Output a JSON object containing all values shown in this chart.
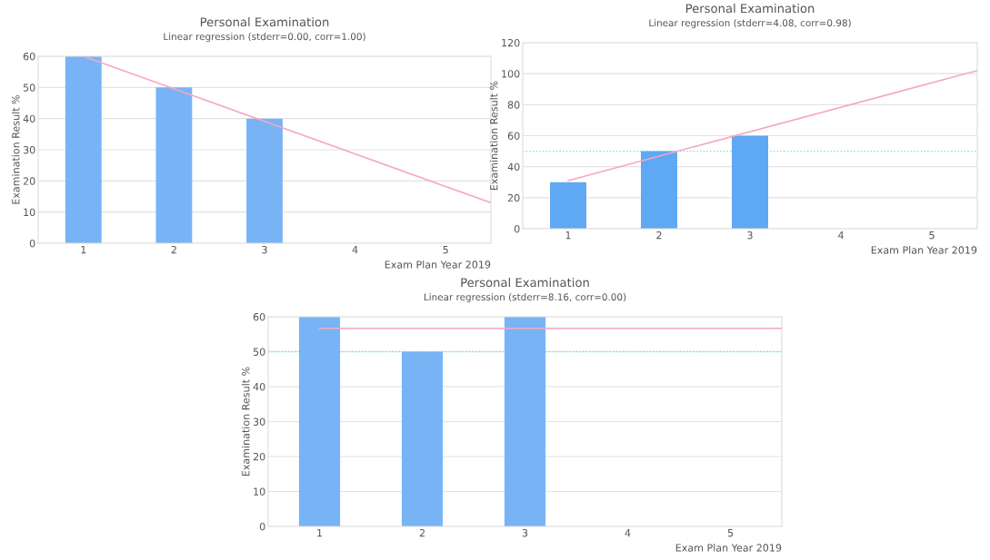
{
  "chart_data": [
    {
      "type": "bar",
      "title": "Personal Examination",
      "subtitle": "Linear regression (stderr=0.00, corr=1.00)",
      "xlabel": "Exam Plan Year 2019",
      "ylabel": "Examination Result %",
      "xlim": [
        0.5,
        5.5
      ],
      "xticks": [
        1,
        2,
        3,
        4,
        5
      ],
      "ylim": [
        0,
        60
      ],
      "yticks": [
        0,
        10,
        20,
        30,
        40,
        50,
        60
      ],
      "grid": "y",
      "legend": false,
      "series": [
        {
          "color": "#78b4f5",
          "x": [
            1,
            2,
            3
          ],
          "values": [
            60,
            50,
            40
          ]
        },
        {
          "type": "line",
          "color": "#f4a7c6",
          "x": [
            1,
            5.5
          ],
          "values": [
            60,
            13
          ]
        }
      ]
    },
    {
      "type": "bar",
      "title": "Personal Examination",
      "subtitle": "Linear regression (stderr=4.08, corr=0.98)",
      "xlabel": "Exam Plan Year 2019",
      "ylabel": "Examination Result %",
      "xlim": [
        0.5,
        5.5
      ],
      "xticks": [
        1,
        2,
        3,
        4,
        5
      ],
      "ylim": [
        0,
        120
      ],
      "yticks": [
        0,
        20,
        40,
        60,
        80,
        100,
        120
      ],
      "grid": "y",
      "legend": false,
      "ref_lines": [
        {
          "axis": "y",
          "value": 50,
          "color": "#6fe3c4",
          "line_style": "dotted"
        }
      ],
      "series": [
        {
          "color": "#5fa8f3",
          "x": [
            1,
            2,
            3
          ],
          "values": [
            30,
            50,
            60
          ]
        },
        {
          "type": "line",
          "color": "#f4a7c6",
          "x": [
            1,
            5.5
          ],
          "values": [
            31,
            102
          ]
        }
      ]
    },
    {
      "type": "bar",
      "title": "Personal Examination",
      "subtitle": "Linear regression (stderr=8.16, corr=0.00)",
      "xlabel": "Exam Plan Year 2019",
      "ylabel": "Examination Result %",
      "xlim": [
        0.5,
        5.5
      ],
      "xticks": [
        1,
        2,
        3,
        4,
        5
      ],
      "ylim": [
        0,
        60
      ],
      "yticks": [
        0,
        10,
        20,
        30,
        40,
        50,
        60
      ],
      "grid": "y",
      "legend": false,
      "ref_lines": [
        {
          "axis": "y",
          "value": 50,
          "color": "#6fe3c4",
          "line_style": "dotted"
        }
      ],
      "series": [
        {
          "color": "#78b4f5",
          "x": [
            1,
            2,
            3
          ],
          "values": [
            60,
            50,
            60
          ]
        },
        {
          "type": "line",
          "color": "#f4a7c6",
          "x": [
            1,
            5.5
          ],
          "values": [
            56.7,
            56.7
          ]
        }
      ]
    }
  ]
}
